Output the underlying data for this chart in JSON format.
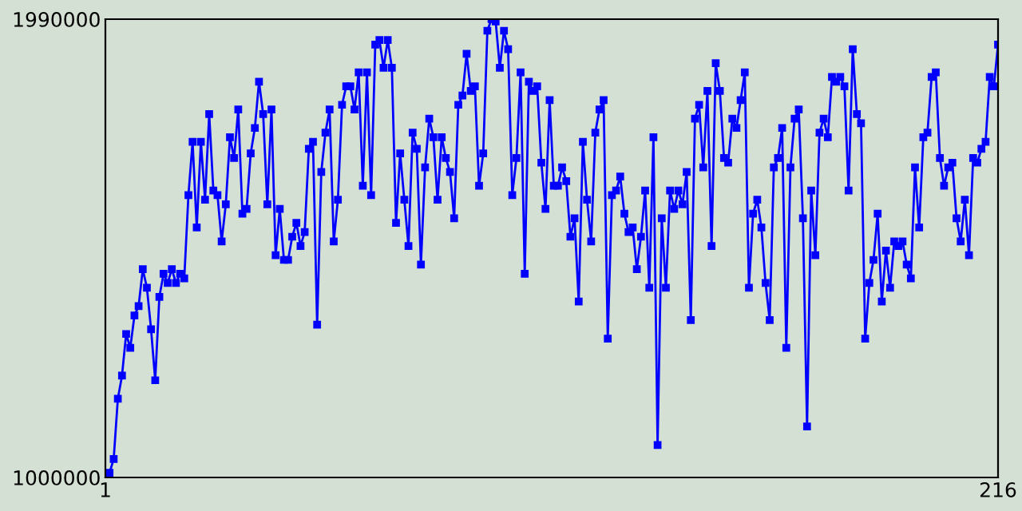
{
  "chart_data": {
    "type": "line",
    "x": [
      1,
      2,
      3,
      4,
      5,
      6,
      7,
      8,
      9,
      10,
      11,
      12,
      13,
      14,
      15,
      16,
      17,
      18,
      19,
      20,
      21,
      22,
      23,
      24,
      25,
      26,
      27,
      28,
      29,
      30,
      31,
      32,
      33,
      34,
      35,
      36,
      37,
      38,
      39,
      40,
      41,
      42,
      43,
      44,
      45,
      46,
      47,
      48,
      49,
      50,
      51,
      52,
      53,
      54,
      55,
      56,
      57,
      58,
      59,
      60,
      61,
      62,
      63,
      64,
      65,
      66,
      67,
      68,
      69,
      70,
      71,
      72,
      73,
      74,
      75,
      76,
      77,
      78,
      79,
      80,
      81,
      82,
      83,
      84,
      85,
      86,
      87,
      88,
      89,
      90,
      91,
      92,
      93,
      94,
      95,
      96,
      97,
      98,
      99,
      100,
      101,
      102,
      103,
      104,
      105,
      106,
      107,
      108,
      109,
      110,
      111,
      112,
      113,
      114,
      115,
      116,
      117,
      118,
      119,
      120,
      121,
      122,
      123,
      124,
      125,
      126,
      127,
      128,
      129,
      130,
      131,
      132,
      133,
      134,
      135,
      136,
      137,
      138,
      139,
      140,
      141,
      142,
      143,
      144,
      145,
      146,
      147,
      148,
      149,
      150,
      151,
      152,
      153,
      154,
      155,
      156,
      157,
      158,
      159,
      160,
      161,
      162,
      163,
      164,
      165,
      166,
      167,
      168,
      169,
      170,
      171,
      172,
      173,
      174,
      175,
      176,
      177,
      178,
      179,
      180,
      181,
      182,
      183,
      184,
      185,
      186,
      187,
      188,
      189,
      190,
      191,
      192,
      193,
      194,
      195,
      196,
      197,
      198,
      199,
      200,
      201,
      202,
      203,
      204,
      205,
      206,
      207,
      208,
      209,
      210,
      211,
      212,
      213,
      214,
      215,
      216
    ],
    "series": [
      {
        "color": "#0000ff",
        "values": [
          1000000,
          1010000,
          1040000,
          1170000,
          1220000,
          1310000,
          1280000,
          1350000,
          1370000,
          1450000,
          1410000,
          1320000,
          1210000,
          1390000,
          1440000,
          1420000,
          1450000,
          1420000,
          1440000,
          1430000,
          1610000,
          1725000,
          1540000,
          1725000,
          1600000,
          1785000,
          1620000,
          1610000,
          1510000,
          1590000,
          1735000,
          1690000,
          1795000,
          1570000,
          1580000,
          1700000,
          1755000,
          1855000,
          1785000,
          1590000,
          1795000,
          1480000,
          1580000,
          1470000,
          1470000,
          1520000,
          1550000,
          1500000,
          1530000,
          1710000,
          1725000,
          1330000,
          1660000,
          1745000,
          1795000,
          1510000,
          1600000,
          1805000,
          1845000,
          1845000,
          1795000,
          1875000,
          1630000,
          1875000,
          1610000,
          1935000,
          1945000,
          1885000,
          1945000,
          1885000,
          1550000,
          1700000,
          1600000,
          1500000,
          1745000,
          1710000,
          1460000,
          1670000,
          1775000,
          1735000,
          1600000,
          1735000,
          1690000,
          1660000,
          1560000,
          1805000,
          1825000,
          1915000,
          1835000,
          1845000,
          1630000,
          1700000,
          1965000,
          1990000,
          1985000,
          1885000,
          1965000,
          1925000,
          1610000,
          1690000,
          1875000,
          1440000,
          1855000,
          1835000,
          1845000,
          1680000,
          1580000,
          1815000,
          1630000,
          1630000,
          1670000,
          1640000,
          1520000,
          1560000,
          1380000,
          1725000,
          1600000,
          1510000,
          1745000,
          1795000,
          1815000,
          1300000,
          1610000,
          1620000,
          1650000,
          1570000,
          1530000,
          1540000,
          1450000,
          1520000,
          1620000,
          1410000,
          1735000,
          1070000,
          1560000,
          1410000,
          1620000,
          1580000,
          1620000,
          1590000,
          1660000,
          1340000,
          1775000,
          1805000,
          1670000,
          1835000,
          1500000,
          1895000,
          1835000,
          1690000,
          1680000,
          1775000,
          1755000,
          1815000,
          1875000,
          1410000,
          1570000,
          1600000,
          1540000,
          1420000,
          1340000,
          1670000,
          1690000,
          1755000,
          1280000,
          1670000,
          1775000,
          1795000,
          1560000,
          1110000,
          1620000,
          1480000,
          1745000,
          1775000,
          1735000,
          1865000,
          1855000,
          1865000,
          1845000,
          1620000,
          1925000,
          1785000,
          1765000,
          1300000,
          1420000,
          1470000,
          1570000,
          1380000,
          1490000,
          1410000,
          1510000,
          1500000,
          1510000,
          1460000,
          1430000,
          1670000,
          1540000,
          1735000,
          1745000,
          1865000,
          1875000,
          1690000,
          1630000,
          1670000,
          1680000,
          1560000,
          1510000,
          1600000,
          1480000,
          1690000,
          1680000,
          1710000,
          1725000,
          1865000,
          1845000,
          1935000
        ]
      }
    ],
    "xlim": [
      1,
      216
    ],
    "xticks": [
      1,
      216
    ],
    "ylim": [
      1000000,
      1990000
    ],
    "yticks": [
      1000000,
      1990000
    ],
    "marker": "square",
    "line_style": "solid"
  }
}
